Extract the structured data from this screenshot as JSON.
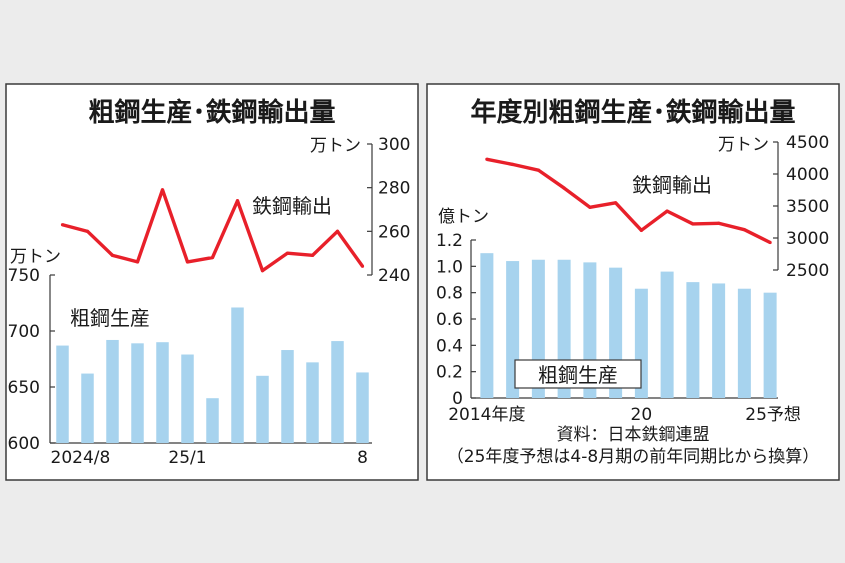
{
  "colors": {
    "bar": "#a7d3ee",
    "line": "#e8202a",
    "frame": "#3a3a3a",
    "background": "#ececec"
  },
  "chart_data": [
    {
      "type": "bar+line",
      "title": "粗鋼生産･鉄鋼輸出量",
      "categories": [
        "2024/8",
        "",
        "",
        "",
        "",
        "25/1",
        "",
        "",
        "",
        "",
        "",
        "",
        "8"
      ],
      "x_tick_labels": [
        "2024/8",
        "25/1",
        "8"
      ],
      "series": [
        {
          "name": "粗鋼生産",
          "type": "bar",
          "axis": "left",
          "values": [
            687,
            662,
            692,
            689,
            690,
            679,
            640,
            721,
            660,
            683,
            672,
            691,
            663
          ]
        },
        {
          "name": "鉄鋼輸出",
          "type": "line",
          "axis": "right",
          "values": [
            263,
            260,
            249,
            246,
            279,
            246,
            248,
            274,
            242,
            250,
            249,
            260,
            244
          ]
        }
      ],
      "left_axis": {
        "unit": "万トン",
        "ylim": [
          600,
          750
        ],
        "ticks": [
          "600",
          "650",
          "700",
          "750"
        ]
      },
      "right_axis": {
        "unit": "万トン",
        "ylim": [
          240,
          300
        ],
        "ticks": [
          "240",
          "260",
          "280",
          "300"
        ]
      }
    },
    {
      "type": "bar+line",
      "title": "年度別粗鋼生産･鉄鋼輸出量",
      "categories": [
        "2014年度",
        "",
        "",
        "",
        "",
        "",
        "20",
        "",
        "",
        "",
        "",
        "25予想"
      ],
      "x_tick_labels": [
        "2014年度",
        "20",
        "25予想"
      ],
      "series": [
        {
          "name": "粗鋼生産",
          "type": "bar",
          "axis": "left",
          "values": [
            1.1,
            1.04,
            1.05,
            1.05,
            1.03,
            0.99,
            0.83,
            0.96,
            0.88,
            0.87,
            0.83,
            0.8
          ]
        },
        {
          "name": "鉄鋼輸出",
          "type": "line",
          "axis": "right",
          "values": [
            4230,
            4150,
            4060,
            3780,
            3480,
            3550,
            3120,
            3420,
            3220,
            3230,
            3130,
            2930
          ]
        }
      ],
      "left_axis": {
        "unit": "億トン",
        "ylim": [
          0,
          1.2
        ],
        "ticks": [
          "0",
          "0.2",
          "0.4",
          "0.6",
          "0.8",
          "1.0",
          "1.2"
        ]
      },
      "right_axis": {
        "unit": "万トン",
        "ylim": [
          2500,
          4500
        ],
        "ticks": [
          "2500",
          "3000",
          "3500",
          "4000",
          "4500"
        ]
      },
      "source": "資料：日本鉄鋼連盟",
      "note": "（25年度予想は4-8月期の前年同期比から換算）"
    }
  ]
}
